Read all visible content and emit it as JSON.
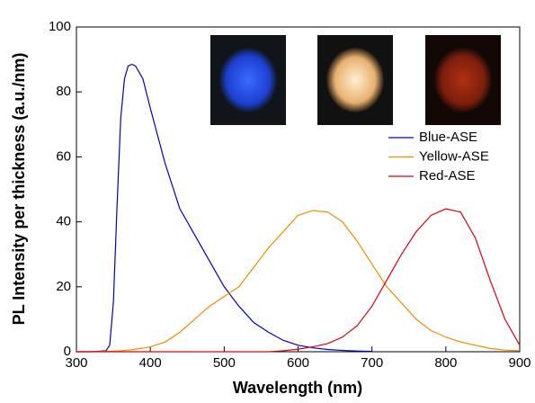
{
  "chart_data": {
    "type": "line",
    "xlabel": "Wavelength (nm)",
    "ylabel": "PL Intensity  per thickness (a.u./nm)",
    "x": [
      300,
      320,
      340,
      345,
      350,
      355,
      360,
      365,
      370,
      375,
      380,
      390,
      400,
      420,
      440,
      460,
      480,
      500,
      520,
      540,
      560,
      580,
      600,
      620,
      640,
      660,
      680,
      700,
      720,
      740,
      760,
      780,
      800,
      820,
      840,
      860,
      880,
      900
    ],
    "series": [
      {
        "name": "Blue-ASE",
        "color": "#0000cc",
        "values": [
          0,
          0,
          0.3,
          2,
          15,
          45,
          72,
          84,
          88,
          88.5,
          88,
          84,
          75,
          58,
          44,
          36,
          28,
          20,
          14,
          9,
          6,
          3.5,
          2,
          1.2,
          0.7,
          0.4,
          0.2,
          0.1,
          null,
          null,
          null,
          null,
          null,
          null,
          null,
          null,
          null,
          null
        ]
      },
      {
        "name": "Yellow-ASE",
        "color": "#f08c00",
        "values": [
          0,
          0,
          0.1,
          0.1,
          0.2,
          0.2,
          0.3,
          0.4,
          0.5,
          0.6,
          0.8,
          1.1,
          1.5,
          3,
          6,
          10,
          14,
          17,
          20,
          26,
          32,
          37,
          42,
          43.5,
          43,
          40,
          34,
          27,
          20,
          15,
          10,
          6.5,
          4.5,
          3,
          2,
          1,
          0.5,
          0.3
        ]
      },
      {
        "name": "Red-ASE",
        "color": "#dd0011",
        "values": [
          0,
          0,
          0,
          0,
          0,
          0,
          0,
          0,
          0,
          0,
          0,
          0,
          0,
          0,
          0,
          0,
          0,
          0,
          0,
          0,
          0,
          0.3,
          0.8,
          1.5,
          2.5,
          4.5,
          8,
          14,
          22,
          30,
          37,
          42,
          44,
          43,
          35,
          22,
          10,
          2
        ]
      }
    ],
    "xlim": [
      300,
      900
    ],
    "xticks": [
      300,
      400,
      500,
      600,
      700,
      800,
      900
    ],
    "ylim": [
      0,
      100
    ],
    "yticks": [
      0,
      20,
      40,
      60,
      80,
      100
    ],
    "legend": "upper-right"
  }
}
